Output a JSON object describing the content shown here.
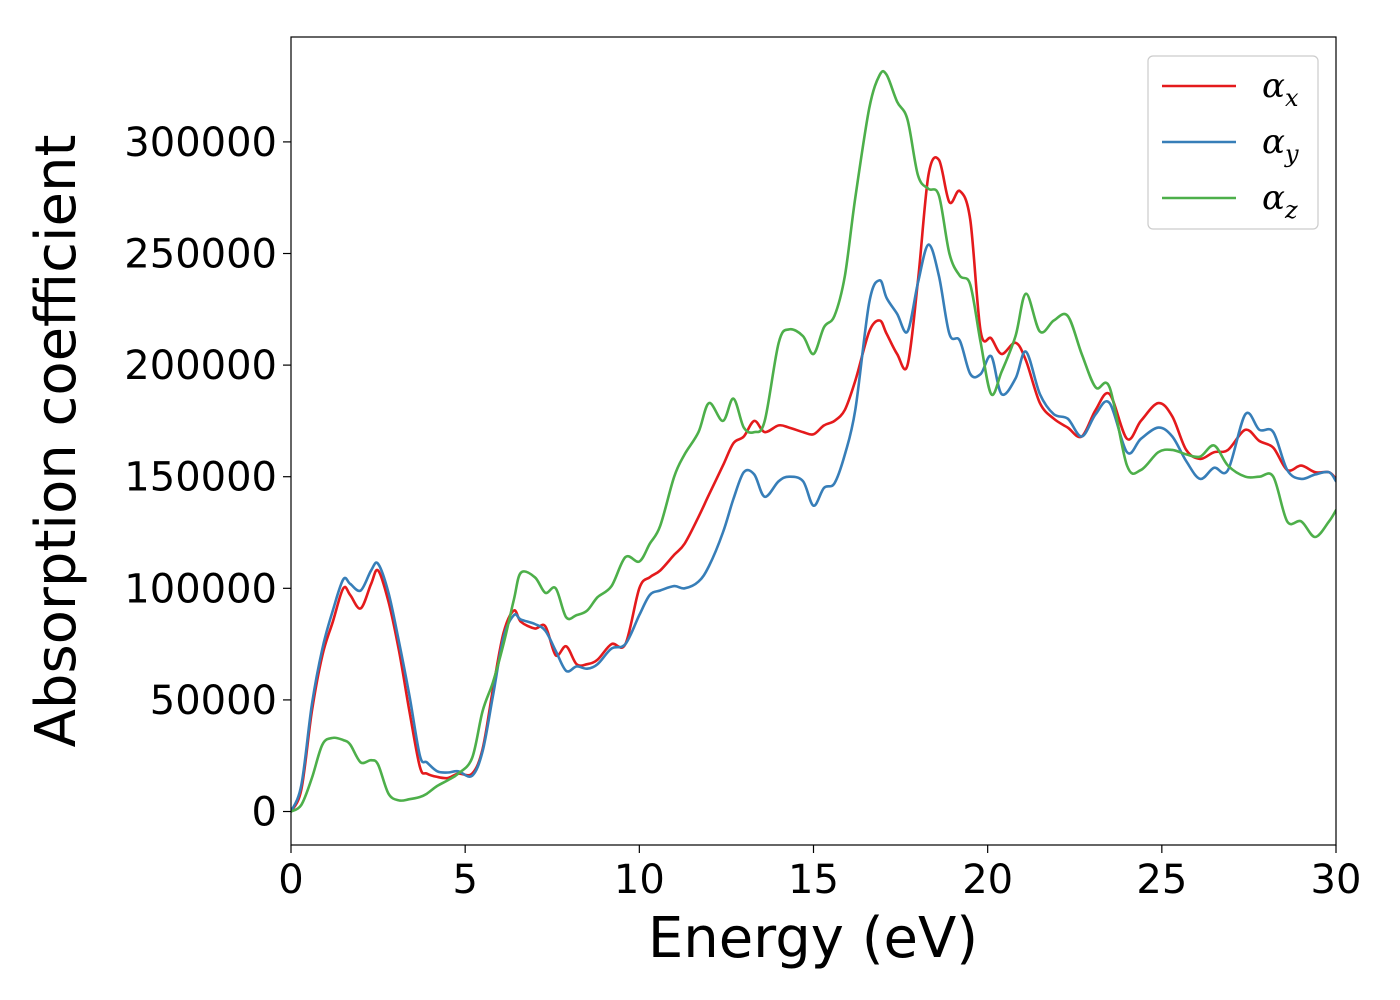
{
  "chart_data": {
    "type": "line",
    "title": "",
    "xlabel": "Energy (eV)",
    "ylabel": "Absorption coefficient",
    "xlim": [
      0,
      30
    ],
    "ylim": [
      -15000,
      347000
    ],
    "xticks": [
      0,
      5,
      10,
      15,
      20,
      25,
      30
    ],
    "yticks": [
      0,
      50000,
      100000,
      150000,
      200000,
      250000,
      300000
    ],
    "grid": false,
    "legend_position": "top-right",
    "series": [
      {
        "name": "α_x",
        "label_main": "α",
        "label_sub": "x",
        "color": "#e41a1c",
        "x": [
          0,
          0.3,
          0.6,
          0.9,
          1.2,
          1.5,
          1.7,
          2.0,
          2.3,
          2.5,
          2.8,
          3.1,
          3.4,
          3.7,
          3.9,
          4.2,
          4.5,
          4.8,
          5.2,
          5.5,
          5.8,
          6.1,
          6.4,
          6.6,
          7.0,
          7.3,
          7.6,
          7.9,
          8.2,
          8.5,
          8.8,
          9.2,
          9.6,
          10.0,
          10.3,
          10.6,
          11.0,
          11.3,
          11.7,
          12.0,
          12.4,
          12.7,
          13.0,
          13.3,
          13.6,
          14.0,
          14.3,
          14.7,
          15.0,
          15.3,
          15.6,
          15.9,
          16.2,
          16.6,
          16.9,
          17.1,
          17.4,
          17.7,
          18.0,
          18.3,
          18.6,
          18.9,
          19.2,
          19.5,
          19.8,
          20.1,
          20.4,
          20.8,
          21.1,
          21.5,
          21.9,
          22.3,
          22.7,
          23.1,
          23.5,
          24.0,
          24.4,
          24.9,
          25.3,
          25.7,
          26.1,
          26.5,
          26.9,
          27.4,
          27.8,
          28.2,
          28.6,
          29.0,
          29.4,
          29.8,
          30.0
        ],
        "values": [
          0,
          10000,
          45000,
          70000,
          85000,
          100000,
          97000,
          91000,
          102000,
          108000,
          94000,
          72000,
          45000,
          20000,
          17000,
          15500,
          15000,
          17000,
          17000,
          28000,
          55000,
          80000,
          90000,
          85000,
          82000,
          83000,
          70000,
          74000,
          66000,
          66000,
          68000,
          75000,
          75000,
          100000,
          105000,
          108000,
          115000,
          120000,
          132000,
          142000,
          155000,
          165000,
          168000,
          175000,
          170000,
          173000,
          172000,
          170000,
          169000,
          173000,
          175000,
          180000,
          193000,
          215000,
          220000,
          214000,
          205000,
          200000,
          238000,
          285000,
          292000,
          273000,
          278000,
          265000,
          215000,
          212000,
          205000,
          210000,
          202000,
          183000,
          176000,
          172000,
          168000,
          180000,
          187000,
          167000,
          175000,
          183000,
          177000,
          162000,
          158000,
          161000,
          162000,
          171000,
          166000,
          163000,
          153000,
          155000,
          152000,
          152000,
          149000
        ]
      },
      {
        "name": "α_y",
        "label_main": "α",
        "label_sub": "y",
        "color": "#377eb8",
        "x": [
          0,
          0.3,
          0.6,
          0.9,
          1.2,
          1.5,
          1.7,
          2.0,
          2.3,
          2.5,
          2.8,
          3.1,
          3.4,
          3.7,
          3.9,
          4.2,
          4.5,
          4.8,
          5.2,
          5.5,
          5.8,
          6.1,
          6.4,
          6.6,
          7.0,
          7.3,
          7.6,
          7.9,
          8.2,
          8.5,
          8.8,
          9.2,
          9.6,
          10.0,
          10.3,
          10.6,
          11.0,
          11.3,
          11.7,
          12.0,
          12.4,
          12.7,
          13.0,
          13.3,
          13.6,
          14.0,
          14.3,
          14.7,
          15.0,
          15.3,
          15.6,
          15.9,
          16.2,
          16.6,
          16.9,
          17.1,
          17.4,
          17.7,
          18.0,
          18.3,
          18.6,
          18.9,
          19.2,
          19.5,
          19.8,
          20.1,
          20.4,
          20.8,
          21.1,
          21.5,
          21.9,
          22.3,
          22.7,
          23.1,
          23.5,
          24.0,
          24.4,
          24.9,
          25.3,
          25.7,
          26.1,
          26.5,
          26.9,
          27.4,
          27.8,
          28.2,
          28.6,
          29.0,
          29.4,
          29.8,
          30.0
        ],
        "values": [
          0,
          12000,
          48000,
          73000,
          90000,
          104000,
          102000,
          99000,
          108000,
          111000,
          98000,
          76000,
          52000,
          25000,
          22000,
          18000,
          17500,
          18000,
          16000,
          27000,
          52000,
          78000,
          88000,
          86000,
          84000,
          81000,
          72000,
          63000,
          65000,
          64000,
          66000,
          73000,
          75000,
          88000,
          97000,
          99000,
          101000,
          100000,
          103000,
          110000,
          125000,
          140000,
          152000,
          151000,
          141000,
          148000,
          150000,
          148000,
          137000,
          145000,
          147000,
          160000,
          180000,
          228000,
          238000,
          230000,
          223000,
          215000,
          237000,
          254000,
          240000,
          214000,
          211000,
          196000,
          196000,
          204000,
          187000,
          194000,
          206000,
          187000,
          178000,
          176000,
          168000,
          178000,
          183000,
          161000,
          167000,
          172000,
          168000,
          157000,
          149000,
          154000,
          153000,
          178000,
          171000,
          170000,
          153000,
          149000,
          151000,
          152000,
          148000
        ]
      },
      {
        "name": "α_z",
        "label_main": "α",
        "label_sub": "z",
        "color": "#4daf4a",
        "x": [
          0,
          0.3,
          0.6,
          0.9,
          1.2,
          1.5,
          1.7,
          2.0,
          2.3,
          2.5,
          2.8,
          3.1,
          3.4,
          3.7,
          3.9,
          4.2,
          4.5,
          4.8,
          5.2,
          5.5,
          5.8,
          6.1,
          6.4,
          6.6,
          7.0,
          7.3,
          7.6,
          7.9,
          8.2,
          8.5,
          8.8,
          9.2,
          9.6,
          10.0,
          10.3,
          10.6,
          11.0,
          11.3,
          11.7,
          12.0,
          12.4,
          12.7,
          13.0,
          13.3,
          13.6,
          14.0,
          14.3,
          14.7,
          15.0,
          15.3,
          15.6,
          15.9,
          16.2,
          16.6,
          16.9,
          17.1,
          17.4,
          17.7,
          18.0,
          18.3,
          18.6,
          18.9,
          19.2,
          19.5,
          19.8,
          20.1,
          20.4,
          20.8,
          21.1,
          21.5,
          21.9,
          22.3,
          22.7,
          23.1,
          23.5,
          24.0,
          24.4,
          24.9,
          25.3,
          25.7,
          26.1,
          26.5,
          26.9,
          27.4,
          27.8,
          28.2,
          28.6,
          29.0,
          29.4,
          29.8,
          30.0
        ],
        "values": [
          0,
          3000,
          15000,
          30000,
          33000,
          32000,
          30000,
          22000,
          23000,
          21000,
          8000,
          5000,
          5500,
          6500,
          8000,
          11500,
          14000,
          17000,
          24000,
          45000,
          58000,
          75000,
          95000,
          107000,
          105000,
          98000,
          100000,
          87000,
          88000,
          90000,
          96000,
          101000,
          114000,
          112000,
          120000,
          128000,
          150000,
          160000,
          170000,
          183000,
          175000,
          185000,
          172000,
          170000,
          175000,
          210000,
          216000,
          213000,
          205000,
          217000,
          222000,
          240000,
          275000,
          315000,
          330000,
          330000,
          318000,
          310000,
          285000,
          279000,
          276000,
          250000,
          240000,
          236000,
          210000,
          187000,
          197000,
          213000,
          232000,
          215000,
          220000,
          222000,
          205000,
          190000,
          190000,
          155000,
          153000,
          161000,
          162000,
          160000,
          159000,
          164000,
          155000,
          150000,
          150000,
          150000,
          130000,
          130000,
          123000,
          130000,
          135000
        ]
      }
    ]
  }
}
